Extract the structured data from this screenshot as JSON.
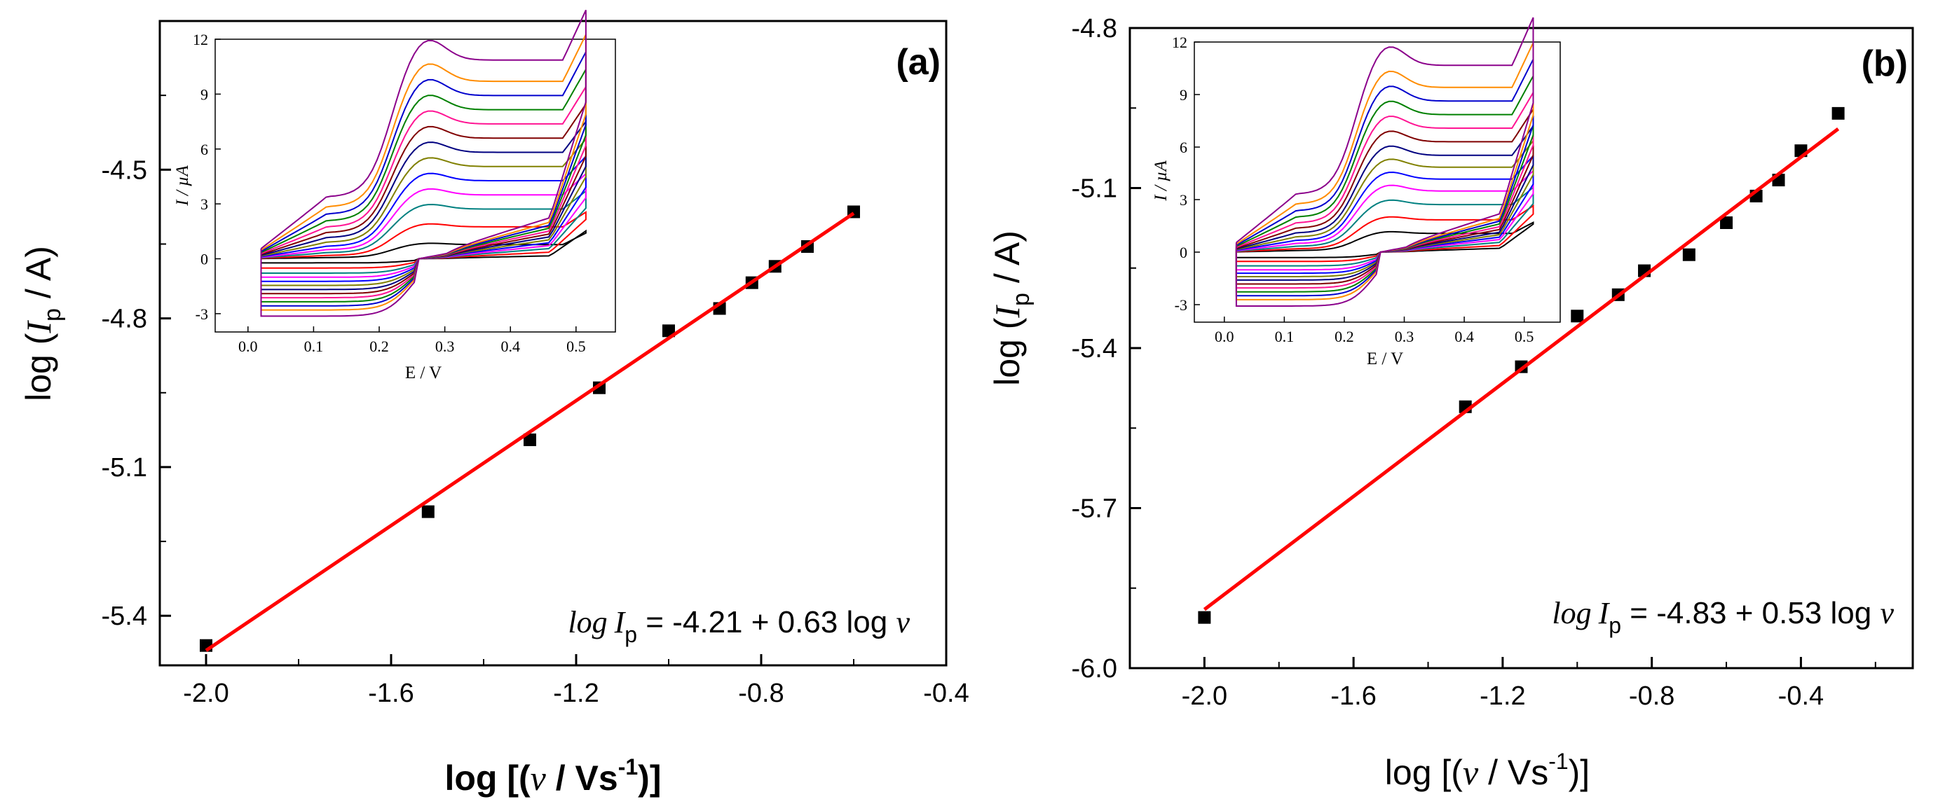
{
  "chart_data": [
    {
      "type": "scatter",
      "panel_label": "(a)",
      "xlim": [
        -2.1,
        -0.4
      ],
      "ylim": [
        -5.5,
        -4.2
      ],
      "xticks": [
        -2.0,
        -1.6,
        -1.2,
        -0.8,
        -0.4
      ],
      "xtick_labels": [
        "-2.0",
        "-1.6",
        "-1.2",
        "-0.8",
        "-0.4"
      ],
      "yticks": [
        -5.4,
        -5.1,
        -4.8,
        -4.5
      ],
      "ytick_labels": [
        "-5.4",
        "-5.1",
        "-4.8",
        "-4.5"
      ],
      "xlabel": {
        "prefix": "log [(",
        "symbol": "v",
        "middle": " / Vs",
        "superscript": "-1",
        "suffix": ")]"
      },
      "ylabel": {
        "prefix": "log (",
        "symbol": "I",
        "subscript": "p",
        "suffix": " / A)"
      },
      "points": [
        {
          "x": -2.0,
          "y": -5.46
        },
        {
          "x": -1.52,
          "y": -5.19
        },
        {
          "x": -1.3,
          "y": -5.045
        },
        {
          "x": -1.15,
          "y": -4.94
        },
        {
          "x": -1.0,
          "y": -4.825
        },
        {
          "x": -0.89,
          "y": -4.78
        },
        {
          "x": -0.82,
          "y": -4.728
        },
        {
          "x": -0.77,
          "y": -4.695
        },
        {
          "x": -0.7,
          "y": -4.655
        },
        {
          "x": -0.6,
          "y": -4.585
        }
      ],
      "fit": {
        "intercept": -4.21,
        "slope": 0.63,
        "x_range": [
          -2.0,
          -0.6
        ],
        "color": "#ff0000"
      },
      "equation": {
        "lhs_log": "log",
        "lhs_symbol": "I",
        "lhs_subscript": "p",
        "rhs": " = -4.21 + 0.63 log ",
        "rhs_symbol": "v"
      },
      "inset": {
        "type": "line",
        "xlabel": "E / V",
        "ylabel": "I / µA",
        "xticks": [
          "0.0",
          "0.1",
          "0.2",
          "0.3",
          "0.4",
          "0.5"
        ],
        "yticks": [
          "-3",
          "0",
          "3",
          "6",
          "9",
          "12"
        ],
        "xlim": [
          -0.05,
          0.56
        ],
        "ylim": [
          -4,
          12
        ],
        "series_colors": [
          "#000000",
          "#ff0000",
          "#008080",
          "#ff00ff",
          "#0000ff",
          "#808000",
          "#000080",
          "#800000",
          "#ff1493",
          "#008000",
          "#0000cd",
          "#ff8c00",
          "#8b008b"
        ],
        "peak_currents_uA": [
          0.8,
          1.8,
          2.8,
          3.6,
          4.4,
          5.2,
          6.0,
          6.8,
          7.6,
          8.4,
          9.2,
          10.0,
          11.2
        ]
      }
    },
    {
      "type": "scatter",
      "panel_label": "(b)",
      "xlim": [
        -2.2,
        -0.1
      ],
      "ylim": [
        -6.0,
        -4.8
      ],
      "xticks": [
        -2.0,
        -1.6,
        -1.2,
        -0.8,
        -0.4
      ],
      "xtick_labels": [
        "-2.0",
        "-1.6",
        "-1.2",
        "-0.8",
        "-0.4"
      ],
      "yticks": [
        -6.0,
        -5.7,
        -5.4,
        -5.1,
        -4.8
      ],
      "ytick_labels": [
        "-6.0",
        "-5.7",
        "-5.4",
        "-5.1",
        "-4.8"
      ],
      "xlabel": {
        "prefix": "log [(",
        "symbol": "v",
        "middle": " / Vs",
        "superscript": "-1",
        "suffix": ")]"
      },
      "ylabel": {
        "prefix": "log (",
        "symbol": "I",
        "subscript": "p",
        "suffix": " / A)"
      },
      "points": [
        {
          "x": -2.0,
          "y": -5.905
        },
        {
          "x": -1.3,
          "y": -5.51
        },
        {
          "x": -1.15,
          "y": -5.435
        },
        {
          "x": -1.0,
          "y": -5.34
        },
        {
          "x": -0.89,
          "y": -5.3
        },
        {
          "x": -0.82,
          "y": -5.255
        },
        {
          "x": -0.7,
          "y": -5.225
        },
        {
          "x": -0.6,
          "y": -5.165
        },
        {
          "x": -0.52,
          "y": -5.115
        },
        {
          "x": -0.46,
          "y": -5.085
        },
        {
          "x": -0.4,
          "y": -5.03
        },
        {
          "x": -0.3,
          "y": -4.96
        }
      ],
      "fit": {
        "intercept": -4.83,
        "slope": 0.53,
        "x_range": [
          -2.0,
          -0.3
        ],
        "color": "#ff0000"
      },
      "equation": {
        "lhs_log": "log",
        "lhs_symbol": "I",
        "lhs_subscript": "p",
        "rhs": " = -4.83 + 0.53 log ",
        "rhs_symbol": "v"
      },
      "inset": {
        "type": "line",
        "xlabel": "E / V",
        "ylabel": "I / µA",
        "xticks": [
          "0.0",
          "0.1",
          "0.2",
          "0.3",
          "0.4",
          "0.5"
        ],
        "yticks": [
          "-3",
          "0",
          "3",
          "6",
          "9",
          "12"
        ],
        "xlim": [
          -0.05,
          0.56
        ],
        "ylim": [
          -4,
          12
        ],
        "series_colors": [
          "#000000",
          "#ff0000",
          "#008080",
          "#ff00ff",
          "#0000ff",
          "#808000",
          "#000080",
          "#800000",
          "#ff1493",
          "#008000",
          "#0000cd",
          "#ff8c00",
          "#8b008b"
        ],
        "peak_currents_uA": [
          1.1,
          1.9,
          2.8,
          3.6,
          4.3,
          5.0,
          5.7,
          6.5,
          7.3,
          8.1,
          8.9,
          9.7,
          11.0
        ]
      }
    }
  ]
}
